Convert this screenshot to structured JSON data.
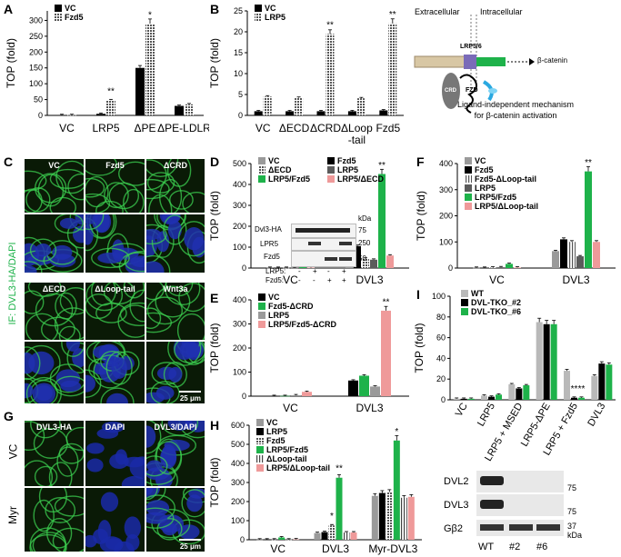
{
  "panel_labels": {
    "A": "A",
    "B": "B",
    "C": "C",
    "D": "D",
    "E": "E",
    "F": "F",
    "G": "G",
    "H": "H",
    "I": "I"
  },
  "ylabel_top": "TOP (fold)",
  "colors": {
    "vc": "#9a9a9a",
    "black": "#000000",
    "lrp5": "#5b5b5b",
    "green": "#1eb24a",
    "pink": "#ef9a9a",
    "hatch": "#8f8f8f",
    "light": "#b9b9b9"
  },
  "panel_B_diagram": {
    "extracellular": "Extracellular",
    "intracellular": "Intracellular",
    "lrp56": "LRP5/6",
    "crd": "CRD",
    "fzd": "FZD",
    "beta": "β-catenin",
    "caption1": "Ligand-independent mechanism",
    "caption2": "for β-catenin activation"
  },
  "panel_C": {
    "side": "IF: DVL3-HA/DAPI",
    "tiles": [
      "VC",
      "Fzd5",
      "ΔCRD",
      "ΔECD",
      "ΔLoop-tail",
      "Wnt3a"
    ],
    "scale": "25 μm"
  },
  "panel_G": {
    "tiles": [
      "DVL3-HA",
      "DAPI",
      "DVL3/DAPI"
    ],
    "rows": [
      "VC",
      "Myr"
    ],
    "scale": "25 μm"
  },
  "panel_D_blot": {
    "rows": [
      "Dvl3-HA",
      "LPR5",
      "Fzd5"
    ],
    "kda": "kDa",
    "markers": [
      "75",
      "250",
      "50"
    ],
    "lrp5": "LRP5:",
    "fzd5": "Fzd5:",
    "lrp5_signs": [
      "-",
      "+",
      "-",
      "+"
    ],
    "fzd5_signs": [
      "-",
      "-",
      "+",
      "+"
    ]
  },
  "panel_I_blot": {
    "rows": [
      "DVL2",
      "DVL3",
      "Gβ2"
    ],
    "markers": [
      "75",
      "75",
      "37"
    ],
    "kda": "kDa",
    "lanes": [
      "WT",
      "#2",
      "#6"
    ]
  },
  "chart_data": [
    {
      "id": "A",
      "type": "bar",
      "categories": [
        "VC",
        "LRP5",
        "ΔPE",
        "ΔPE-LDLR"
      ],
      "ylabel": "TOP (fold)",
      "ylim": [
        0,
        330
      ],
      "yticks": [
        0,
        50,
        100,
        150,
        200,
        250,
        300
      ],
      "series": [
        {
          "name": "VC",
          "values": [
            1,
            5,
            150,
            30
          ]
        },
        {
          "name": "Fzd5",
          "values": [
            1,
            48,
            290,
            35
          ]
        }
      ],
      "annotations": [
        "**",
        "*"
      ]
    },
    {
      "id": "B",
      "type": "bar",
      "categories": [
        "VC",
        "ΔECD",
        "ΔCRD",
        "ΔLoop",
        "Fzd5"
      ],
      "category_line2": [
        "",
        "",
        "",
        "-tail",
        ""
      ],
      "ylabel": "TOP (fold)",
      "ylim": [
        0,
        25
      ],
      "yticks": [
        0,
        5,
        10,
        15,
        20,
        25
      ],
      "series": [
        {
          "name": "VC",
          "values": [
            1,
            1,
            1,
            1,
            1.2
          ]
        },
        {
          "name": "LRP5",
          "values": [
            4.5,
            4.2,
            19.5,
            4.1,
            22
          ]
        }
      ],
      "annotations": [
        "**",
        "**"
      ]
    },
    {
      "id": "D",
      "type": "bar",
      "categories": [
        "VC",
        "DVL3"
      ],
      "ylabel": "TOP (fold)",
      "ylim": [
        0,
        500
      ],
      "yticks": [
        0,
        100,
        200,
        300,
        400,
        500
      ],
      "series": [
        {
          "name": "VC",
          "values": [
            1,
            65
          ]
        },
        {
          "name": "Fzd5",
          "values": [
            1,
            105
          ]
        },
        {
          "name": "ΔECD",
          "values": [
            1,
            45
          ]
        },
        {
          "name": "LRP5",
          "values": [
            1,
            40
          ]
        },
        {
          "name": "LRP5/Fzd5",
          "values": [
            15,
            450
          ]
        },
        {
          "name": "LRP5/ΔECD",
          "values": [
            2,
            60
          ]
        }
      ],
      "annotations": [
        "**"
      ]
    },
    {
      "id": "E",
      "type": "bar",
      "categories": [
        "VC",
        "DVL3"
      ],
      "ylabel": "TOP (fold)",
      "ylim": [
        0,
        400
      ],
      "yticks": [
        0,
        100,
        200,
        300,
        400
      ],
      "series": [
        {
          "name": "VC",
          "values": [
            1,
            65
          ]
        },
        {
          "name": "Fzd5-ΔCRD",
          "values": [
            1,
            85
          ]
        },
        {
          "name": "LRP5",
          "values": [
            4,
            40
          ]
        },
        {
          "name": "LRP5/Fzd5-ΔCRD",
          "values": [
            18,
            355
          ]
        }
      ],
      "annotations": [
        "**"
      ]
    },
    {
      "id": "F",
      "type": "bar",
      "categories": [
        "VC",
        "DVL3"
      ],
      "ylabel": "TOP (fold)",
      "ylim": [
        0,
        400
      ],
      "yticks": [
        0,
        100,
        200,
        300,
        400
      ],
      "series": [
        {
          "name": "VC",
          "values": [
            1,
            65
          ]
        },
        {
          "name": "Fzd5",
          "values": [
            1,
            110
          ]
        },
        {
          "name": "Fzd5-ΔLoop-tail",
          "values": [
            2,
            100
          ]
        },
        {
          "name": "LRP5",
          "values": [
            3,
            45
          ]
        },
        {
          "name": "LRP5/Fzd5",
          "values": [
            16,
            370
          ]
        },
        {
          "name": "LRP5/ΔLoop-tail",
          "values": [
            2,
            100
          ]
        }
      ],
      "annotations": [
        "**"
      ]
    },
    {
      "id": "H",
      "type": "bar",
      "categories": [
        "VC",
        "DVL3",
        "Myr-DVL3"
      ],
      "ylabel": "TOP (fold)",
      "ylim": [
        0,
        600
      ],
      "yticks": [
        0,
        100,
        200,
        300,
        400,
        500,
        600
      ],
      "series": [
        {
          "name": "VC",
          "values": [
            1,
            35,
            230
          ]
        },
        {
          "name": "LRP5",
          "values": [
            1,
            40,
            245
          ]
        },
        {
          "name": "Fzd5",
          "values": [
            1,
            75,
            250
          ]
        },
        {
          "name": "LRP5/Fzd5",
          "values": [
            12,
            325,
            520
          ]
        },
        {
          "name": "ΔLoop-tail",
          "values": [
            1,
            38,
            220
          ]
        },
        {
          "name": "LRP5/ΔLoop-tail",
          "values": [
            2,
            38,
            225
          ]
        }
      ],
      "annotations": [
        "*",
        "**",
        "*"
      ]
    },
    {
      "id": "I",
      "type": "bar",
      "categories": [
        "VC",
        "LRP5",
        "LRP5 + MSED",
        "LRP5-ΔPE",
        "LRP5 + Fzd5",
        "DVL3"
      ],
      "ylabel": "TOP (fold)",
      "ylim": [
        0,
        100
      ],
      "yticks": [
        0,
        20,
        40,
        60,
        80,
        100
      ],
      "series": [
        {
          "name": "WT",
          "values": [
            1,
            4,
            15,
            75,
            28,
            23
          ]
        },
        {
          "name": "DVL-TKO_#2",
          "values": [
            1,
            3,
            11,
            73,
            2,
            35
          ]
        },
        {
          "name": "DVL-TKO_#6",
          "values": [
            1,
            5,
            14,
            73,
            2,
            34
          ]
        }
      ],
      "annotations": [
        "**",
        "**"
      ]
    }
  ]
}
